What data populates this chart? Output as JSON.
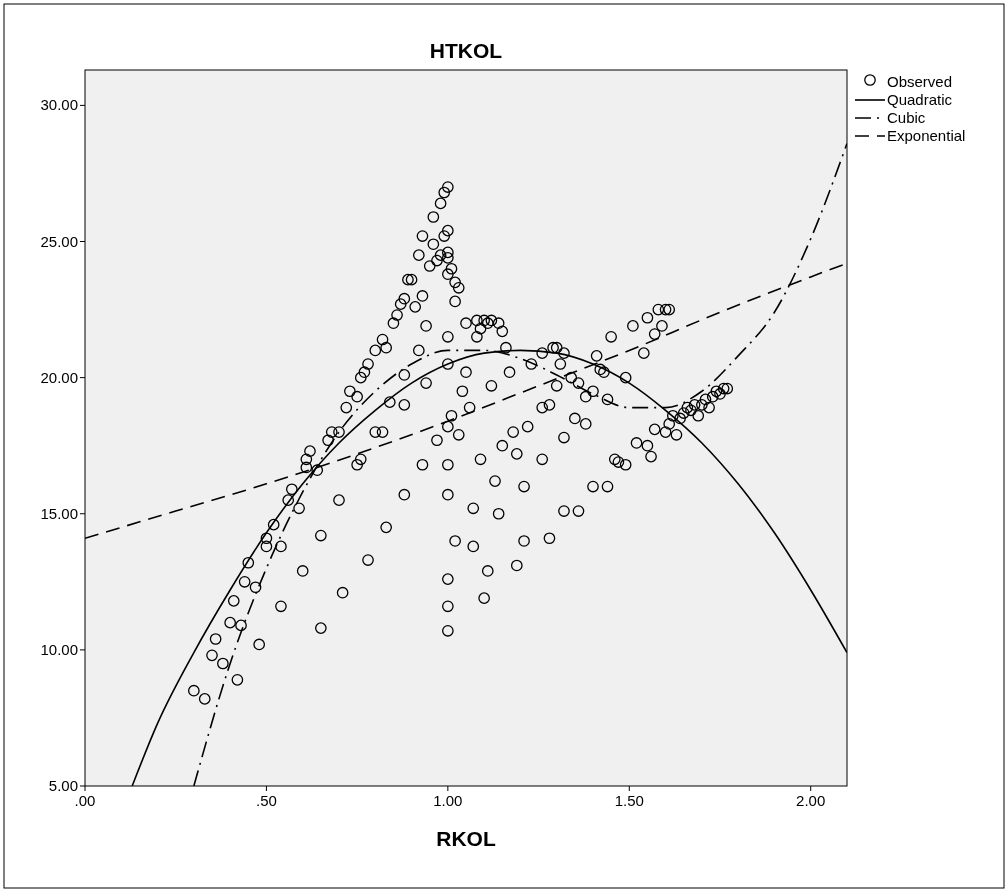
{
  "chart_data": {
    "type": "scatter",
    "title": "HTKOL",
    "xlabel": "RKOL",
    "xlim": [
      0,
      2.1
    ],
    "ylim": [
      5,
      31.3
    ],
    "xticks": [
      {
        "value": 0,
        "label": ".00"
      },
      {
        "value": 0.5,
        "label": ".50"
      },
      {
        "value": 1,
        "label": "1.00"
      },
      {
        "value": 1.5,
        "label": "1.50"
      },
      {
        "value": 2,
        "label": "2.00"
      }
    ],
    "yticks": [
      {
        "value": 5,
        "label": "5.00"
      },
      {
        "value": 10,
        "label": "10.00"
      },
      {
        "value": 15,
        "label": "15.00"
      },
      {
        "value": 20,
        "label": "20.00"
      },
      {
        "value": 25,
        "label": "25.00"
      },
      {
        "value": 30,
        "label": "30.00"
      }
    ],
    "grid": false,
    "legend": "top right",
    "series": [
      {
        "name": "Observed",
        "marker": "circle",
        "color": "#000000",
        "x": [
          0.3,
          0.33,
          0.35,
          0.36,
          0.38,
          0.4,
          0.41,
          0.42,
          0.43,
          0.44,
          0.45,
          0.47,
          0.48,
          0.5,
          0.5,
          0.52,
          0.54,
          0.54,
          0.56,
          0.57,
          0.59,
          0.6,
          0.61,
          0.61,
          0.62,
          0.64,
          0.65,
          0.65,
          0.67,
          0.68,
          0.7,
          0.7,
          0.71,
          0.72,
          0.73,
          0.75,
          0.75,
          0.76,
          0.76,
          0.77,
          0.78,
          0.78,
          0.8,
          0.8,
          0.82,
          0.82,
          0.83,
          0.83,
          0.84,
          0.85,
          0.86,
          0.87,
          0.88,
          0.88,
          0.88,
          0.88,
          0.89,
          0.9,
          0.91,
          0.92,
          0.92,
          0.93,
          0.93,
          0.93,
          0.94,
          0.94,
          0.95,
          0.96,
          0.96,
          0.97,
          0.97,
          0.98,
          0.98,
          0.99,
          0.99,
          1.0,
          1.0,
          1.0,
          1.0,
          1.0,
          1.0,
          1.0,
          1.0,
          1.0,
          1.0,
          1.0,
          1.0,
          1.0,
          1.01,
          1.02,
          1.02,
          1.03,
          1.01,
          1.02,
          1.03,
          1.04,
          1.05,
          1.05,
          1.06,
          1.07,
          1.07,
          1.08,
          1.08,
          1.09,
          1.09,
          1.1,
          1.1,
          1.11,
          1.11,
          1.12,
          1.12,
          1.13,
          1.14,
          1.14,
          1.15,
          1.15,
          1.16,
          1.17,
          1.18,
          1.19,
          1.19,
          1.21,
          1.21,
          1.22,
          1.23,
          1.26,
          1.26,
          1.26,
          1.28,
          1.28,
          1.29,
          1.3,
          1.3,
          1.31,
          1.32,
          1.32,
          1.32,
          1.34,
          1.35,
          1.36,
          1.36,
          1.38,
          1.38,
          1.4,
          1.4,
          1.41,
          1.42,
          1.43,
          1.44,
          1.44,
          1.45,
          1.46,
          1.47,
          1.49,
          1.49,
          1.51,
          1.52,
          1.54,
          1.55,
          1.55,
          1.56,
          1.57,
          1.57,
          1.58,
          1.59,
          1.6,
          1.6,
          1.61,
          1.61,
          1.62,
          1.63,
          1.64,
          1.65,
          1.66,
          1.67,
          1.68,
          1.69,
          1.7,
          1.71,
          1.72,
          1.73,
          1.74,
          1.75,
          1.76,
          1.77
        ],
        "values": [
          8.5,
          8.2,
          9.8,
          10.4,
          9.5,
          11.0,
          11.8,
          8.9,
          10.9,
          12.5,
          13.2,
          12.3,
          10.2,
          14.1,
          13.8,
          14.6,
          13.8,
          11.6,
          15.5,
          15.9,
          15.2,
          12.9,
          16.7,
          17.0,
          17.3,
          16.6,
          14.2,
          10.8,
          17.7,
          18.0,
          18.0,
          15.5,
          12.1,
          18.9,
          19.5,
          19.3,
          16.8,
          20.0,
          17.0,
          20.2,
          20.5,
          13.3,
          21.0,
          18.0,
          21.4,
          18.0,
          21.1,
          14.5,
          19.1,
          22.0,
          22.3,
          22.7,
          22.9,
          20.1,
          19.0,
          15.7,
          23.6,
          23.6,
          22.6,
          21.0,
          24.5,
          23.0,
          25.2,
          16.8,
          21.9,
          19.8,
          24.1,
          24.9,
          25.9,
          24.3,
          17.7,
          26.4,
          24.5,
          25.2,
          26.8,
          27.0,
          25.4,
          24.6,
          24.4,
          23.8,
          21.5,
          20.5,
          18.2,
          16.8,
          15.7,
          12.6,
          11.6,
          10.7,
          24.0,
          23.5,
          22.8,
          23.3,
          18.6,
          14.0,
          17.9,
          19.5,
          22.0,
          20.2,
          18.9,
          13.8,
          15.2,
          21.5,
          22.1,
          21.8,
          17.0,
          22.1,
          11.9,
          12.9,
          22.0,
          22.1,
          19.7,
          16.2,
          22.0,
          15.0,
          21.7,
          17.5,
          21.1,
          20.2,
          18.0,
          17.2,
          13.1,
          16.0,
          14.0,
          18.2,
          20.5,
          20.9,
          18.9,
          17.0,
          19.0,
          14.1,
          21.1,
          19.7,
          21.1,
          20.5,
          20.9,
          17.8,
          15.1,
          20.0,
          18.5,
          19.8,
          15.1,
          18.3,
          19.3,
          19.5,
          16.0,
          20.8,
          20.3,
          20.2,
          19.2,
          16.0,
          21.5,
          17.0,
          16.9,
          16.8,
          20.0,
          21.9,
          17.6,
          20.9,
          17.5,
          22.2,
          17.1,
          18.1,
          21.6,
          22.5,
          21.9,
          22.5,
          18.0,
          18.3,
          22.5,
          18.6,
          17.9,
          18.5,
          18.7,
          18.9,
          18.8,
          19.0,
          18.6,
          19.0,
          19.2,
          18.9,
          19.3,
          19.5,
          19.4,
          19.6,
          19.6
        ]
      },
      {
        "name": "Quadratic",
        "type": "line",
        "line_style": "solid",
        "color": "#000000",
        "x": [
          0.13,
          0.2,
          0.3,
          0.4,
          0.5,
          0.6,
          0.7,
          0.8,
          0.9,
          1.0,
          1.1,
          1.2,
          1.3,
          1.4,
          1.5,
          1.6,
          1.7,
          1.8,
          1.9,
          2.0,
          2.1
        ],
        "values": [
          5.0,
          7.3,
          9.9,
          12.2,
          14.3,
          16.1,
          17.6,
          18.8,
          19.8,
          20.5,
          20.9,
          21.0,
          20.9,
          20.5,
          19.8,
          18.8,
          17.6,
          16.1,
          14.3,
          12.2,
          9.9
        ]
      },
      {
        "name": "Cubic",
        "type": "line",
        "line_style": "dashdot",
        "color": "#000000",
        "x": [
          0.3,
          0.4,
          0.5,
          0.6,
          0.7,
          0.8,
          0.9,
          1.0,
          1.1,
          1.2,
          1.3,
          1.4,
          1.5,
          1.6,
          1.7,
          1.8,
          1.9,
          2.0,
          2.1
        ],
        "values": [
          5.0,
          9.5,
          13.0,
          15.8,
          18.0,
          19.5,
          20.5,
          21.0,
          21.0,
          20.7,
          20.1,
          19.4,
          18.9,
          18.9,
          19.5,
          20.8,
          22.4,
          25.1,
          28.6
        ]
      },
      {
        "name": "Exponential",
        "type": "line",
        "line_style": "dashed",
        "color": "#000000",
        "x": [
          0,
          0.25,
          0.5,
          0.75,
          1.0,
          1.25,
          1.5,
          1.75,
          2.0,
          2.1
        ],
        "values": [
          14.1,
          15.1,
          16.1,
          17.2,
          18.4,
          19.7,
          21.0,
          22.4,
          23.7,
          24.2
        ]
      }
    ]
  }
}
